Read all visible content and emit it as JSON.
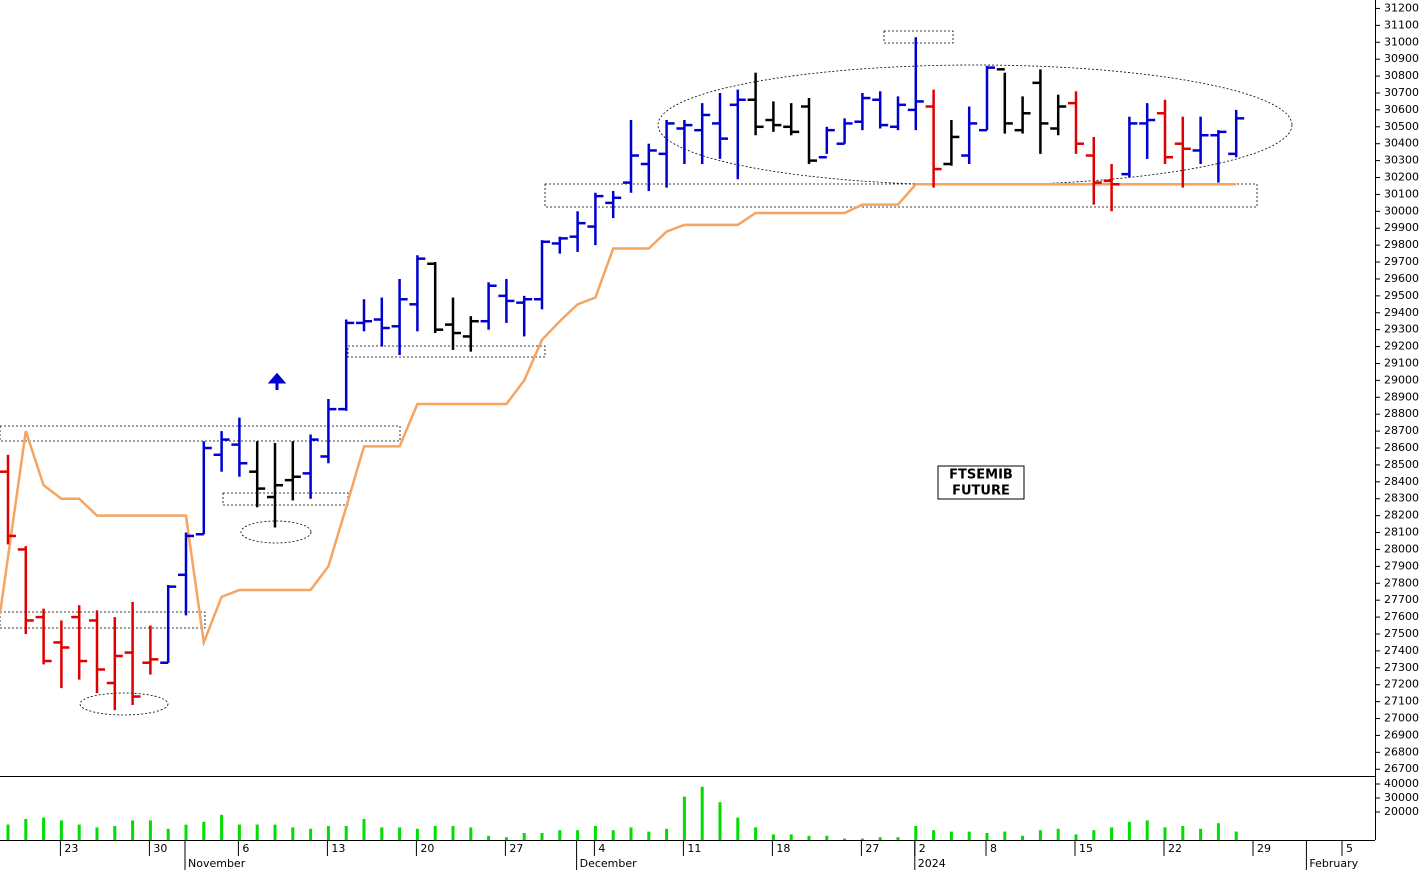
{
  "chart_data": [
    {
      "type": "ohlc",
      "annotation": [
        "FTSEMIB",
        "FUTURE"
      ],
      "categories": [
        null,
        null,
        null,
        null,
        null,
        null,
        null,
        null,
        null,
        null,
        null,
        null,
        null,
        null,
        null,
        null,
        null,
        null,
        null,
        null,
        null,
        null,
        null,
        null,
        null,
        null,
        null,
        null,
        null,
        null,
        null,
        null,
        null,
        null,
        null,
        null,
        null,
        null,
        null,
        null,
        null,
        null,
        null,
        null,
        null,
        null,
        null,
        null,
        null,
        null,
        null,
        null,
        null,
        null,
        null,
        null,
        null,
        null,
        null,
        null,
        null,
        null,
        null,
        null,
        null,
        null,
        null,
        null,
        null,
        null
      ],
      "open": [
        28460,
        28000,
        27600,
        27450,
        27600,
        27580,
        27210,
        27390,
        27330,
        27330,
        27850,
        28090,
        28560,
        28620,
        28460,
        28310,
        28410,
        28450,
        28550,
        28830,
        29340,
        29360,
        29320,
        29450,
        29690,
        29330,
        29260,
        29350,
        29500,
        29460,
        29480,
        29810,
        29850,
        29910,
        30050,
        30170,
        30280,
        30340,
        30490,
        30480,
        30520,
        30630,
        30660,
        30540,
        30500,
        30620,
        30320,
        30400,
        30530,
        30660,
        30500,
        30600,
        30620,
        30280,
        30330,
        30480,
        30840,
        30480,
        30760,
        30490,
        30640,
        30330,
        30180,
        30220,
        30520,
        30580,
        30400,
        30360,
        30450,
        30340
      ],
      "high": [
        28560,
        28020,
        27650,
        27580,
        27670,
        27640,
        27600,
        27690,
        27550,
        27790,
        28100,
        28640,
        28700,
        28780,
        28640,
        28630,
        28640,
        28680,
        28890,
        29360,
        29480,
        29490,
        29600,
        29740,
        29700,
        29490,
        29380,
        29580,
        29600,
        29500,
        29830,
        29850,
        30000,
        30110,
        30120,
        30540,
        30400,
        30540,
        30540,
        30640,
        30700,
        30720,
        30820,
        30650,
        30640,
        30670,
        30500,
        30550,
        30700,
        30710,
        30680,
        31030,
        30720,
        30540,
        30620,
        30860,
        30820,
        30680,
        30840,
        30690,
        30710,
        30440,
        30280,
        30560,
        30640,
        30660,
        30560,
        30560,
        30480,
        30600
      ],
      "low": [
        28030,
        27500,
        27320,
        27180,
        27230,
        27150,
        27050,
        27080,
        27260,
        27330,
        27610,
        28090,
        28460,
        28430,
        28250,
        28130,
        28290,
        28300,
        28510,
        28820,
        29290,
        29200,
        29150,
        29290,
        29280,
        29180,
        29170,
        29300,
        29340,
        29260,
        29420,
        29750,
        29760,
        29800,
        29960,
        30110,
        30120,
        30140,
        30280,
        30280,
        30310,
        30190,
        30450,
        30470,
        30450,
        30280,
        30340,
        30400,
        30480,
        30490,
        30480,
        30480,
        30140,
        30270,
        30280,
        30480,
        30460,
        30460,
        30340,
        30450,
        30340,
        30040,
        30000,
        30200,
        30310,
        30280,
        30140,
        30280,
        30170,
        30320
      ],
      "close": [
        28080,
        27580,
        27340,
        27420,
        27340,
        27290,
        27370,
        27130,
        27350,
        27780,
        28080,
        28600,
        28650,
        28510,
        28360,
        28380,
        28430,
        28650,
        28830,
        29340,
        29350,
        29310,
        29480,
        29720,
        29300,
        29280,
        29350,
        29560,
        29470,
        29480,
        29820,
        29840,
        29930,
        30090,
        30080,
        30330,
        30360,
        30520,
        30510,
        30570,
        30430,
        30660,
        30500,
        30510,
        30470,
        30300,
        30480,
        30520,
        30670,
        30510,
        30630,
        30650,
        30250,
        30440,
        30520,
        30850,
        30520,
        30580,
        30520,
        30620,
        30400,
        30170,
        30160,
        30520,
        30540,
        30320,
        30370,
        30450,
        30470,
        30550
      ],
      "bar_colors": [
        "#e00000",
        "#e00000",
        "#e00000",
        "#e00000",
        "#e00000",
        "#e00000",
        "#e00000",
        "#e00000",
        "#e00000",
        "#0000d0",
        "#0000d0",
        "#0000d0",
        "#0000d0",
        "#0000d0",
        "#000000",
        "#000000",
        "#000000",
        "#0000d0",
        "#0000d0",
        "#0000d0",
        "#0000d0",
        "#0000d0",
        "#0000d0",
        "#0000d0",
        "#000000",
        "#000000",
        "#000000",
        "#0000d0",
        "#0000d0",
        "#0000d0",
        "#0000d0",
        "#0000d0",
        "#0000d0",
        "#0000d0",
        "#0000d0",
        "#0000d0",
        "#0000d0",
        "#0000d0",
        "#0000d0",
        "#0000d0",
        "#0000d0",
        "#0000d0",
        "#000000",
        "#000000",
        "#000000",
        "#000000",
        "#0000d0",
        "#0000d0",
        "#0000d0",
        "#0000d0",
        "#0000d0",
        "#0000d0",
        "#e00000",
        "#000000",
        "#0000d0",
        "#0000d0",
        "#000000",
        "#000000",
        "#000000",
        "#000000",
        "#e00000",
        "#e00000",
        "#e00000",
        "#0000d0",
        "#0000d0",
        "#e00000",
        "#e00000",
        "#0000d0",
        "#0000d0",
        "#0000d0"
      ],
      "line": {
        "color": "#f5a462",
        "values": [
          27620,
          28700,
          28380,
          28300,
          28300,
          28200,
          28200,
          28200,
          28200,
          28200,
          28200,
          27450,
          27720,
          27760,
          27760,
          27760,
          27760,
          27760,
          27900,
          28250,
          28610,
          28610,
          28610,
          28860,
          28860,
          28860,
          28860,
          28860,
          28860,
          29000,
          29240,
          29350,
          29450,
          29490,
          29780,
          29780,
          29780,
          29880,
          29920,
          29920,
          29920,
          29920,
          29990,
          29990,
          29990,
          29990,
          29990,
          29990,
          30040,
          30040,
          30040,
          30160,
          30160,
          30160,
          30160,
          30160,
          30160,
          30160,
          30160,
          30160,
          30160,
          30160,
          30160,
          30160,
          30160,
          30160,
          30160,
          30160,
          30160,
          30160
        ]
      },
      "ylim": [
        26660,
        31250
      ],
      "yticks": [
        26700,
        26800,
        26900,
        27000,
        27100,
        27200,
        27300,
        27400,
        27500,
        27600,
        27700,
        27800,
        27900,
        28000,
        28100,
        28200,
        28300,
        28400,
        28500,
        28600,
        28700,
        28800,
        28900,
        29000,
        29100,
        29200,
        29300,
        29400,
        29500,
        29600,
        29700,
        29800,
        29900,
        30000,
        30100,
        30200,
        30300,
        30400,
        30500,
        30600,
        30700,
        30800,
        30900,
        31000,
        31100,
        31200
      ],
      "xticks": [
        {
          "value": 3,
          "label": "23"
        },
        {
          "value": 8,
          "label": "30"
        },
        {
          "value": 13,
          "label": "6"
        },
        {
          "value": 18,
          "label": "13"
        },
        {
          "value": 23,
          "label": "20"
        },
        {
          "value": 28,
          "label": "27"
        },
        {
          "value": 33,
          "label": "4"
        },
        {
          "value": 38,
          "label": "11"
        },
        {
          "value": 43,
          "label": "18"
        },
        {
          "value": 48,
          "label": "27"
        },
        {
          "value": 51,
          "label": "2"
        },
        {
          "value": 55,
          "label": "8"
        },
        {
          "value": 60,
          "label": "15"
        },
        {
          "value": 65,
          "label": "22"
        },
        {
          "value": 70,
          "label": "29"
        },
        {
          "value": 75,
          "label": "5"
        }
      ],
      "month_ticks": [
        {
          "value": 10,
          "label": "November"
        },
        {
          "value": 32,
          "label": "December"
        },
        {
          "value": 51,
          "label": "2024"
        },
        {
          "value": 73,
          "label": "February"
        }
      ]
    },
    {
      "type": "volume",
      "color": "#00dd00",
      "values": [
        11000,
        15000,
        16000,
        14000,
        11000,
        9000,
        10000,
        14000,
        14000,
        8000,
        11000,
        13000,
        18000,
        11000,
        11000,
        11000,
        9000,
        8000,
        10000,
        10000,
        15000,
        9000,
        9000,
        8000,
        10000,
        10000,
        9000,
        3000,
        2000,
        5000,
        5000,
        7000,
        7000,
        10000,
        7000,
        9000,
        6000,
        8000,
        31000,
        38000,
        27000,
        16000,
        9000,
        4000,
        4000,
        3000,
        3000,
        1000,
        1000,
        2000,
        2000,
        10000,
        7000,
        6000,
        6000,
        5000,
        6000,
        3000,
        7000,
        8000,
        4000,
        7000,
        9000,
        13000,
        14000,
        9000,
        10000,
        8000,
        12000,
        6000
      ],
      "ylim": [
        0,
        45000
      ],
      "yticks": [
        20000,
        30000,
        40000
      ]
    }
  ]
}
